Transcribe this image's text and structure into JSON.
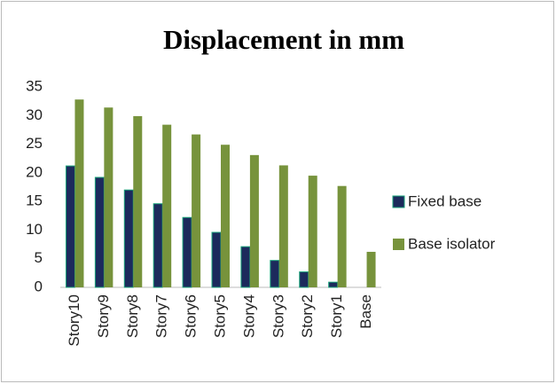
{
  "chart_data": {
    "type": "bar",
    "title": "Displacement in mm",
    "categories": [
      "Story10",
      "Story9",
      "Story8",
      "Story7",
      "Story6",
      "Story5",
      "Story4",
      "Story3",
      "Story2",
      "Story1",
      "Base"
    ],
    "series": [
      {
        "name": "Fixed base",
        "color": "#1c2a5c",
        "values": [
          21.2,
          19.2,
          17,
          14.6,
          12.2,
          9.6,
          7.1,
          4.7,
          2.7,
          0.9,
          0
        ]
      },
      {
        "name": "Base isolator",
        "color": "#77933c",
        "values": [
          32.8,
          31.4,
          29.9,
          28.4,
          26.7,
          24.9,
          23.1,
          21.3,
          19.5,
          17.7,
          6.2
        ]
      }
    ],
    "ylim": [
      0,
      35
    ],
    "yticks": [
      0,
      5,
      10,
      15,
      20,
      25,
      30,
      35
    ],
    "grid": false,
    "legend": "right"
  }
}
